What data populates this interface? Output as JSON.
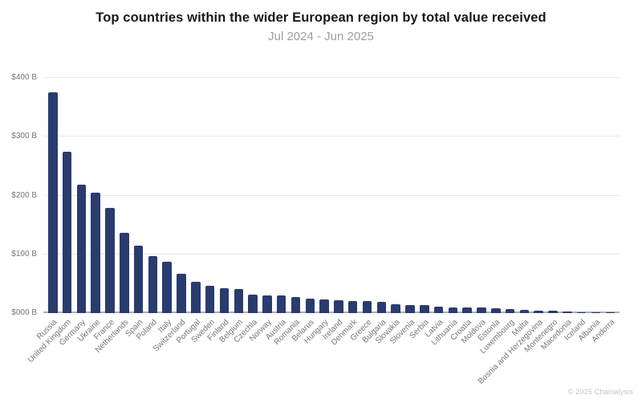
{
  "header": {
    "title": "Top countries within the wider European region by total value received",
    "subtitle": "Jul 2024 - Jun 2025"
  },
  "footer": {
    "copyright": "© 2025 Chainalysis"
  },
  "chart_data": {
    "type": "bar",
    "title": "Top countries within the wider European region by total value received",
    "subtitle": "Jul 2024 - Jun 2025",
    "xlabel": "",
    "ylabel": "",
    "ylim": [
      0,
      400
    ],
    "y_ticks": [
      "$000 B",
      "$100 B",
      "$200 B",
      "$300 B",
      "$400 B"
    ],
    "grid": true,
    "legend": "none",
    "bar_color": "#2A3B6E",
    "categories": [
      "Russia",
      "United Kingdom",
      "Germany",
      "Ukraine",
      "France",
      "Netherlands",
      "Spain",
      "Poland",
      "Italy",
      "Switzerland",
      "Portugal",
      "Sweden",
      "Finland",
      "Belgium",
      "Czechia",
      "Norway",
      "Austria",
      "Romania",
      "Belarus",
      "Hungary",
      "Ireland",
      "Denmark",
      "Greece",
      "Bulgaria",
      "Slovakia",
      "Slovenia",
      "Serbia",
      "Latvia",
      "Lithuania",
      "Croatia",
      "Moldova",
      "Estonia",
      "Luxembourg",
      "Malta",
      "Bosnia and Herzegovina",
      "Montenegro",
      "Macedonia",
      "Iceland",
      "Albania",
      "Andorra"
    ],
    "values": [
      376,
      275,
      219,
      205,
      179,
      136,
      115,
      97,
      87,
      67,
      53,
      47,
      43,
      41,
      32,
      30.5,
      30,
      28,
      24,
      23,
      22.5,
      20.5,
      20,
      19,
      15,
      14,
      13,
      11,
      10,
      9.5,
      9,
      8,
      7,
      6,
      4,
      3.5,
      2.5,
      1.5,
      1,
      0.7
    ],
    "values_unit": "billion USD"
  }
}
